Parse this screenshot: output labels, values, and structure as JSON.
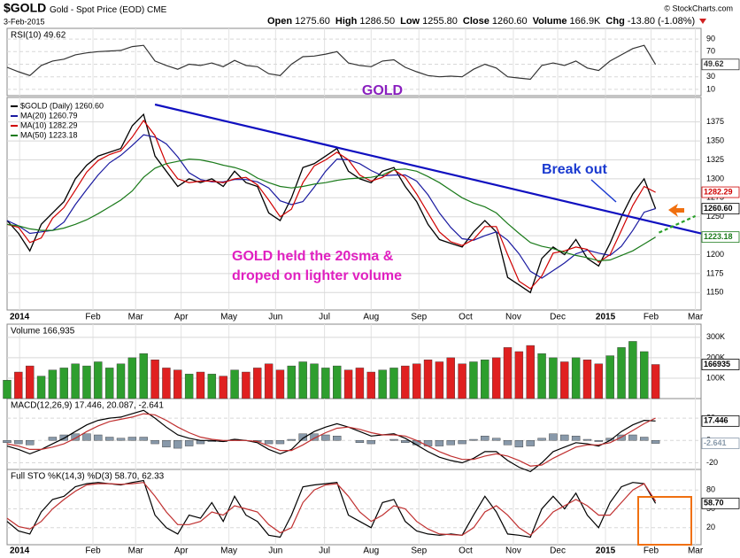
{
  "header": {
    "symbol": "$GOLD",
    "title": "Gold - Spot Price (EOD)",
    "exchange": "CME",
    "date": "3-Feb-2015",
    "copyright": "© StockCharts.com",
    "quote": [
      [
        "Open",
        "1275.60"
      ],
      [
        "High",
        "1286.50"
      ],
      [
        "Low",
        "1255.80"
      ],
      [
        "Close",
        "1260.60"
      ],
      [
        "Volume",
        "166.9K"
      ],
      [
        "Chg",
        "-13.80 (-1.08%)"
      ]
    ]
  },
  "annotations": {
    "rsi_note": "GOLD",
    "breakout": "Break out",
    "note_line1": "GOLD held the 20sma &",
    "note_line2": "droped on lighter volume"
  },
  "chart_data": [
    {
      "type": "line",
      "title": "RSI(10) 49.62",
      "ylim": [
        0,
        100
      ],
      "yticks": [
        10,
        30,
        50,
        70,
        90
      ],
      "grid": true,
      "series": [
        {
          "color": "#333333",
          "end_label": "49.62",
          "values": [
            45,
            38,
            32,
            48,
            55,
            58,
            65,
            68,
            70,
            71,
            72,
            78,
            80,
            55,
            48,
            42,
            50,
            48,
            52,
            46,
            56,
            48,
            46,
            35,
            32,
            50,
            62,
            63,
            66,
            70,
            52,
            48,
            46,
            55,
            57,
            45,
            38,
            32,
            30,
            31,
            30,
            42,
            50,
            44,
            30,
            28,
            26,
            48,
            52,
            48,
            55,
            44,
            40,
            55,
            65,
            75,
            80,
            49.62
          ]
        }
      ]
    },
    {
      "type": "line",
      "ylim": [
        1127,
        1405
      ],
      "yticks": [
        1150,
        1175,
        1200,
        1225,
        1250,
        1275,
        1300,
        1325,
        1350,
        1375
      ],
      "grid": true,
      "xlim": [
        0,
        61
      ],
      "xticks": [
        {
          "value": 1.1,
          "label": "2014"
        },
        {
          "value": 7.55,
          "label": "Feb"
        },
        {
          "value": 11.3,
          "label": "Mar"
        },
        {
          "value": 15.3,
          "label": "Apr"
        },
        {
          "value": 19.5,
          "label": "May"
        },
        {
          "value": 23.6,
          "label": "Jun"
        },
        {
          "value": 27.9,
          "label": "Jul"
        },
        {
          "value": 32,
          "label": "Aug"
        },
        {
          "value": 36.2,
          "label": "Sep"
        },
        {
          "value": 40.3,
          "label": "Oct"
        },
        {
          "value": 44.5,
          "label": "Nov"
        },
        {
          "value": 48.4,
          "label": "Dec"
        },
        {
          "value": 52.6,
          "label": "2015"
        },
        {
          "value": 56.6,
          "label": "Feb"
        },
        {
          "value": 60.5,
          "label": "Mar"
        }
      ],
      "x": [
        0,
        1,
        2,
        3,
        4,
        5,
        6,
        7,
        8,
        9,
        10,
        11,
        12,
        13,
        14,
        15,
        16,
        17,
        18,
        19,
        20,
        21,
        22,
        23,
        24,
        25,
        26,
        27,
        28,
        29,
        30,
        31,
        32,
        33,
        34,
        35,
        36,
        37,
        38,
        39,
        40,
        41,
        42,
        43,
        44,
        45,
        46,
        47,
        48,
        49,
        50,
        51,
        52,
        53,
        54,
        55,
        56,
        57
      ],
      "series": [
        {
          "name": "$GOLD (Daily) 1260.60",
          "color": "#000000",
          "end_label": "1260.60",
          "values": [
            1245,
            1228,
            1205,
            1240,
            1255,
            1270,
            1300,
            1318,
            1330,
            1335,
            1340,
            1370,
            1385,
            1330,
            1310,
            1290,
            1300,
            1295,
            1300,
            1290,
            1310,
            1295,
            1290,
            1255,
            1245,
            1275,
            1315,
            1320,
            1330,
            1340,
            1310,
            1300,
            1295,
            1310,
            1315,
            1290,
            1270,
            1240,
            1220,
            1215,
            1210,
            1230,
            1245,
            1230,
            1170,
            1160,
            1150,
            1195,
            1210,
            1200,
            1220,
            1195,
            1185,
            1215,
            1250,
            1280,
            1300,
            1260.6
          ]
        },
        {
          "name": "MA(20) 1260.79",
          "color": "#1a1aa0",
          "values": [
            1245,
            1238,
            1228,
            1230,
            1232,
            1243,
            1266,
            1286,
            1305,
            1321,
            1331,
            1344,
            1358,
            1355,
            1346,
            1329,
            1308,
            1299,
            1296,
            1296,
            1299,
            1299,
            1296,
            1288,
            1271,
            1266,
            1270,
            1289,
            1310,
            1326,
            1325,
            1320,
            1311,
            1304,
            1305,
            1305,
            1297,
            1279,
            1255,
            1236,
            1221,
            1219,
            1225,
            1230,
            1219,
            1201,
            1178,
            1169,
            1179,
            1189,
            1201,
            1206,
            1202,
            1199,
            1211,
            1232,
            1256,
            1260.79
          ]
        },
        {
          "name": "MA(10) 1282.29",
          "color": "#d00000",
          "end_label": "1282.29",
          "values": [
            1240,
            1236,
            1216,
            1222,
            1248,
            1262,
            1285,
            1309,
            1324,
            1332,
            1337,
            1355,
            1377,
            1357,
            1320,
            1300,
            1295,
            1297,
            1297,
            1295,
            1300,
            1302,
            1292,
            1272,
            1250,
            1260,
            1295,
            1317,
            1325,
            1335,
            1325,
            1305,
            1297,
            1302,
            1312,
            1302,
            1280,
            1255,
            1230,
            1217,
            1212,
            1220,
            1237,
            1237,
            1200,
            1165,
            1155,
            1172,
            1202,
            1205,
            1210,
            1207,
            1190,
            1200,
            1232,
            1265,
            1290,
            1282.29
          ]
        },
        {
          "name": "MA(50) 1223.18",
          "color": "#1a7a1a",
          "end_label": "1223.18",
          "values": [
            1240,
            1238,
            1234,
            1232,
            1232,
            1235,
            1240,
            1246,
            1254,
            1263,
            1272,
            1284,
            1302,
            1314,
            1320,
            1323,
            1326,
            1325,
            1322,
            1318,
            1315,
            1310,
            1301,
            1295,
            1290,
            1288,
            1290,
            1293,
            1295,
            1298,
            1300,
            1301,
            1302,
            1305,
            1312,
            1313,
            1310,
            1303,
            1295,
            1285,
            1275,
            1268,
            1263,
            1255,
            1241,
            1228,
            1216,
            1211,
            1208,
            1203,
            1199,
            1196,
            1192,
            1193,
            1199,
            1205,
            1214,
            1223.18
          ]
        }
      ],
      "trendlines": [
        {
          "x": [
            13,
            61
          ],
          "y": [
            1398,
            1228
          ],
          "color": "#1010c0",
          "dashed": false
        },
        {
          "x": [
            57.3,
            60.5
          ],
          "y": [
            1229,
            1251
          ],
          "color": "#2aa02a",
          "dashed": true
        }
      ]
    },
    {
      "type": "bar",
      "title": "Volume 166,935",
      "ylim": [
        0,
        360000
      ],
      "yticks": [
        {
          "value": 100000,
          "label": "100K"
        },
        {
          "value": 200000,
          "label": "200K"
        },
        {
          "value": 300000,
          "label": "300K"
        }
      ],
      "grid": true,
      "series": [
        {
          "up_color": "#2e9e2e",
          "down_color": "#e02020",
          "end_label": "166935",
          "values": [
            90000,
            130000,
            160000,
            110000,
            140000,
            150000,
            170000,
            160000,
            180000,
            150000,
            170000,
            200000,
            220000,
            190000,
            150000,
            140000,
            120000,
            130000,
            120000,
            110000,
            140000,
            130000,
            150000,
            170000,
            140000,
            160000,
            180000,
            170000,
            150000,
            160000,
            140000,
            150000,
            130000,
            140000,
            150000,
            160000,
            170000,
            190000,
            180000,
            200000,
            170000,
            180000,
            190000,
            200000,
            250000,
            230000,
            260000,
            220000,
            200000,
            180000,
            200000,
            190000,
            170000,
            210000,
            250000,
            280000,
            230000,
            166935
          ]
        }
      ]
    },
    {
      "type": "line",
      "title": "MACD(12,26,9) 17.446, 20.087, -2.641",
      "ylim": [
        -26,
        36
      ],
      "yticks": [
        -20,
        0,
        20
      ],
      "grid": true,
      "series": [
        {
          "type": "bar",
          "color": "#8899aa",
          "end_label": "-2.641",
          "values": [
            -2,
            -3,
            -4,
            0,
            3,
            5,
            6,
            6,
            5,
            3,
            2,
            3,
            3,
            -3,
            -6,
            -7,
            -5,
            -3,
            -1,
            -1,
            1,
            0,
            -1,
            -3,
            -3,
            1,
            6,
            6,
            5,
            4,
            0,
            -2,
            -3,
            0,
            1,
            -2,
            -4,
            -5,
            -5,
            -4,
            -3,
            1,
            4,
            2,
            -4,
            -6,
            -5,
            2,
            6,
            5,
            4,
            1,
            -1,
            2,
            5,
            5,
            3,
            -2.641
          ]
        },
        {
          "color": "#000000",
          "end_label": "17.446",
          "values": [
            -5,
            -8,
            -12,
            -8,
            -3,
            2,
            8,
            14,
            18,
            20,
            21,
            24,
            27,
            20,
            12,
            5,
            2,
            0,
            0,
            -1,
            1,
            0,
            -2,
            -8,
            -12,
            -8,
            2,
            8,
            12,
            15,
            12,
            8,
            4,
            5,
            6,
            2,
            -4,
            -10,
            -15,
            -18,
            -20,
            -16,
            -10,
            -10,
            -18,
            -24,
            -28,
            -20,
            -10,
            -6,
            -2,
            -3,
            -5,
            0,
            8,
            14,
            18,
            17.446
          ]
        },
        {
          "color": "#c03030",
          "values": [
            -3,
            -5,
            -8,
            -8,
            -6,
            -3,
            2,
            8,
            13,
            17,
            19,
            21,
            24,
            23,
            18,
            12,
            7,
            3,
            1,
            0,
            0,
            0,
            -1,
            -5,
            -9,
            -9,
            -4,
            2,
            7,
            11,
            12,
            10,
            7,
            5,
            5,
            4,
            0,
            -5,
            -10,
            -14,
            -17,
            -17,
            -14,
            -12,
            -14,
            -18,
            -23,
            -22,
            -16,
            -11,
            -6,
            -4,
            -4,
            -2,
            3,
            9,
            15,
            20.087
          ]
        }
      ]
    },
    {
      "type": "line",
      "title": "Full STO %K(14,3) %D(3) 58.70, 62.33",
      "ylim": [
        0,
        100
      ],
      "yticks": [
        20,
        50,
        80
      ],
      "grid": true,
      "series": [
        {
          "color": "#000000",
          "end_label": "58.70",
          "values": [
            30,
            15,
            10,
            45,
            65,
            70,
            85,
            90,
            92,
            90,
            88,
            92,
            95,
            40,
            20,
            10,
            40,
            35,
            60,
            30,
            70,
            40,
            30,
            8,
            5,
            40,
            85,
            88,
            90,
            92,
            40,
            30,
            20,
            60,
            65,
            30,
            15,
            10,
            8,
            10,
            8,
            40,
            70,
            45,
            10,
            8,
            5,
            50,
            70,
            50,
            75,
            40,
            20,
            60,
            85,
            92,
            90,
            58.7
          ]
        },
        {
          "color": "#c03030",
          "values": [
            35,
            22,
            18,
            30,
            50,
            65,
            78,
            88,
            90,
            90,
            89,
            90,
            92,
            70,
            45,
            25,
            25,
            30,
            45,
            40,
            55,
            50,
            45,
            25,
            12,
            20,
            60,
            80,
            88,
            90,
            70,
            45,
            30,
            40,
            55,
            50,
            30,
            18,
            10,
            9,
            8,
            20,
            45,
            55,
            40,
            20,
            8,
            25,
            45,
            55,
            65,
            55,
            40,
            40,
            60,
            80,
            90,
            62.33
          ]
        }
      ]
    }
  ]
}
